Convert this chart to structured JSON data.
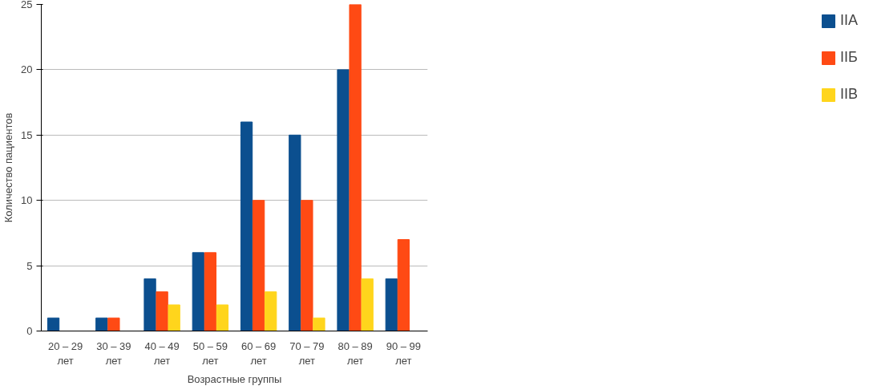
{
  "chart_data": {
    "type": "bar",
    "xlabel": "Возрастные группы",
    "ylabel": "Количество пациентов",
    "categories": [
      "20 – 29\nлет",
      "30 – 39\nлет",
      "40 – 49\nлет",
      "50 – 59\nлет",
      "60 – 69\nлет",
      "70 – 79\nлет",
      "80 – 89\nлет",
      "90 – 99\nлет"
    ],
    "series": [
      {
        "name": "IIA",
        "color": "#0b4f8f",
        "values": [
          1,
          1,
          4,
          6,
          16,
          15,
          20,
          4
        ]
      },
      {
        "name": "IIБ",
        "color": "#ff4a14",
        "values": [
          0,
          1,
          3,
          6,
          10,
          10,
          25,
          7
        ]
      },
      {
        "name": "IIВ",
        "color": "#ffd51c",
        "values": [
          0,
          0,
          2,
          2,
          3,
          1,
          4,
          0
        ]
      }
    ],
    "ylim": [
      0,
      25
    ],
    "yticks": [
      0,
      5,
      10,
      15,
      20,
      25
    ],
    "grid": "y",
    "legend": "right"
  }
}
